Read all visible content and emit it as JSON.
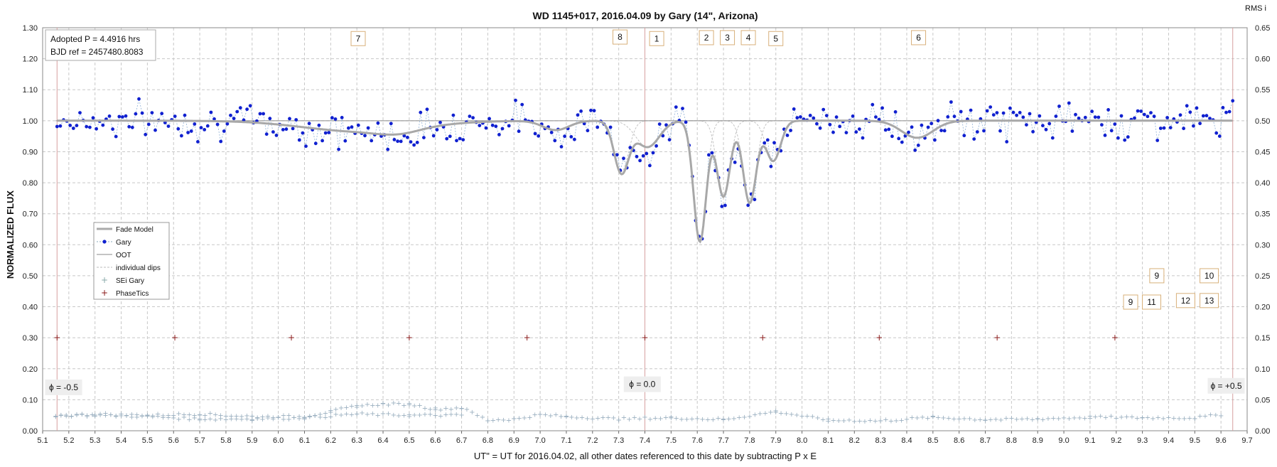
{
  "chart_data": {
    "type": "scatter",
    "title": "WD 1145+017,  2016.04.09  by Gary (14\", Arizona)",
    "corner_label": "RMS i",
    "xlabel": "UT\" = UT for 2016.04.02, all other dates referenced to this date by subtracting P x E",
    "ylabel": "NORMALIZED FLUX",
    "xlim": [
      5.1,
      9.7
    ],
    "ylim": [
      0.0,
      1.3
    ],
    "y2lim": [
      0.0,
      0.65
    ],
    "x_ticks": [
      "5.1",
      "5.2",
      "5.3",
      "5.4",
      "5.5",
      "5.6",
      "5.7",
      "5.8",
      "5.9",
      "6.0",
      "6.1",
      "6.2",
      "6.3",
      "6.4",
      "6.5",
      "6.6",
      "6.7",
      "6.8",
      "6.9",
      "7.0",
      "7.1",
      "7.2",
      "7.3",
      "7.4",
      "7.5",
      "7.6",
      "7.7",
      "7.8",
      "7.9",
      "8.0",
      "8.1",
      "8.2",
      "8.3",
      "8.4",
      "8.5",
      "8.6",
      "8.7",
      "8.8",
      "8.9",
      "9.0",
      "9.1",
      "9.2",
      "9.3",
      "9.4",
      "9.5",
      "9.6",
      "9.7"
    ],
    "y_ticks": [
      "0.00",
      "0.10",
      "0.20",
      "0.30",
      "0.40",
      "0.50",
      "0.60",
      "0.70",
      "0.80",
      "0.90",
      "1.00",
      "1.10",
      "1.20",
      "1.30"
    ],
    "y2_ticks": [
      "0.00",
      "0.05",
      "0.10",
      "0.15",
      "0.20",
      "0.25",
      "0.30",
      "0.35",
      "0.40",
      "0.45",
      "0.50",
      "0.55",
      "0.60",
      "0.65"
    ],
    "grid": true,
    "legend_position": "left-middle",
    "legend": [
      "Fade Model",
      "Gary",
      "OOT",
      "individual dips",
      "SEi  Gary",
      "PhaseTics"
    ],
    "info_box": [
      "Adopted P = 4.4916  hrs",
      "BJD ref = 2457480.8083"
    ],
    "phase_labels": [
      {
        "text": "ϕ = -0.5",
        "x": 5.18,
        "y": 0.14
      },
      {
        "text": "ϕ = 0.0",
        "x": 7.39,
        "y": 0.15
      },
      {
        "text": "ϕ = +0.5",
        "x": 9.62,
        "y": 0.145
      }
    ],
    "phase_lines_x": [
      5.155,
      7.4,
      9.645
    ],
    "phase_tics": {
      "x": [
        5.155,
        5.605,
        6.05,
        6.5,
        6.95,
        7.4,
        7.85,
        8.295,
        8.745,
        9.195
      ],
      "y": 0.3
    },
    "dips": [
      {
        "center": 6.32,
        "depth": 0.035,
        "width": 0.22
      },
      {
        "center": 6.46,
        "depth": 0.015,
        "width": 0.08
      },
      {
        "center": 7.31,
        "depth": 0.165,
        "width": 0.028
      },
      {
        "center": 7.41,
        "depth": 0.085,
        "width": 0.045
      },
      {
        "center": 7.61,
        "depth": 0.39,
        "width": 0.024
      },
      {
        "center": 7.7,
        "depth": 0.245,
        "width": 0.025
      },
      {
        "center": 7.8,
        "depth": 0.265,
        "width": 0.025
      },
      {
        "center": 7.89,
        "depth": 0.13,
        "width": 0.028
      },
      {
        "center": 8.44,
        "depth": 0.055,
        "width": 0.06
      },
      {
        "center": 7.06,
        "depth": 0.03,
        "width": 0.05
      }
    ],
    "dip_markers": [
      {
        "label": "7",
        "x": 6.305,
        "y": 1.265
      },
      {
        "label": "8",
        "x": 7.305,
        "y": 1.27
      },
      {
        "label": "1",
        "x": 7.445,
        "y": 1.265
      },
      {
        "label": "2",
        "x": 7.635,
        "y": 1.268
      },
      {
        "label": "3",
        "x": 7.715,
        "y": 1.268
      },
      {
        "label": "4",
        "x": 7.795,
        "y": 1.268
      },
      {
        "label": "5",
        "x": 7.9,
        "y": 1.265
      },
      {
        "label": "6",
        "x": 8.445,
        "y": 1.268
      },
      {
        "label": "9",
        "x": 9.355,
        "y": 0.5
      },
      {
        "label": "10",
        "x": 9.555,
        "y": 0.5
      },
      {
        "label": "9",
        "x": 9.255,
        "y": 0.415
      },
      {
        "label": "11",
        "x": 9.335,
        "y": 0.415
      },
      {
        "label": "12",
        "x": 9.465,
        "y": 0.42
      },
      {
        "label": "13",
        "x": 9.555,
        "y": 0.42
      }
    ],
    "series": [
      {
        "name": "Gary",
        "style": "points",
        "x_start": 5.155,
        "x_end": 9.645,
        "n": 360,
        "scatter": 0.028
      },
      {
        "name": "SEi  Gary",
        "style": "crosses",
        "axis": "y2",
        "x": [
          5.15,
          5.3,
          5.5,
          5.7,
          5.9,
          6.1,
          6.2,
          6.3,
          6.4,
          6.5,
          6.6,
          6.7,
          6.8,
          6.9,
          7.0,
          7.1,
          7.3,
          7.5,
          7.7,
          7.9,
          8.1,
          8.3,
          8.5,
          8.7,
          8.9,
          9.1,
          9.3,
          9.5,
          9.6
        ],
        "values": [
          0.025,
          0.028,
          0.026,
          0.028,
          0.024,
          0.024,
          0.032,
          0.041,
          0.044,
          0.044,
          0.036,
          0.038,
          0.018,
          0.02,
          0.027,
          0.024,
          0.02,
          0.022,
          0.019,
          0.032,
          0.018,
          0.017,
          0.023,
          0.019,
          0.02,
          0.023,
          0.022,
          0.022,
          0.027
        ]
      },
      {
        "name": "SEi  Gary",
        "style": "crosses",
        "axis": "y2",
        "x": [
          5.15,
          5.3,
          5.5,
          5.7,
          5.9,
          6.1,
          6.3,
          6.5,
          6.7
        ],
        "values": [
          0.026,
          0.026,
          0.024,
          0.02,
          0.02,
          0.022,
          0.028,
          0.026,
          0.026
        ]
      }
    ]
  }
}
